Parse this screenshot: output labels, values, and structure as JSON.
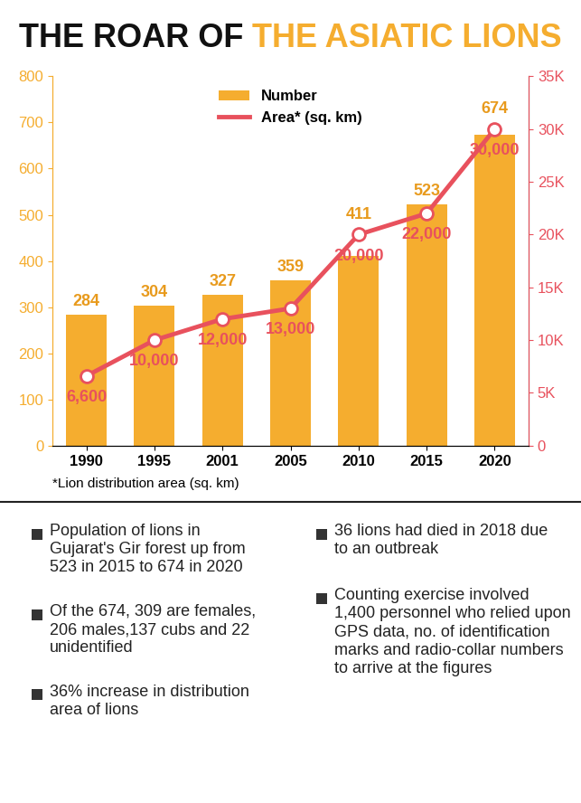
{
  "chart_data": {
    "type": "bar",
    "title": [
      "THE ROAR OF",
      "THE ASIATIC LIONS"
    ],
    "categories": [
      "1990",
      "1995",
      "2001",
      "2005",
      "2010",
      "2015",
      "2020"
    ],
    "series": [
      {
        "name": "Number",
        "type": "bar",
        "color": "#f5ad2f",
        "data_labels": true,
        "values": [
          284,
          304,
          327,
          359,
          411,
          523,
          674
        ]
      },
      {
        "name": "Area* (sq. km)",
        "type": "line",
        "color": "#e8515d",
        "axis": "y2",
        "marker": "circle",
        "line_style": "solid",
        "data_labels": true,
        "values": [
          6600,
          10000,
          12000,
          13000,
          20000,
          22000,
          30000
        ],
        "value_labels": [
          "6,600",
          "10,000",
          "12,000",
          "13,000",
          "20,000",
          "22,000",
          "30,000"
        ]
      }
    ],
    "ylim": [
      0,
      800
    ],
    "yticks": [
      0,
      100,
      200,
      300,
      400,
      500,
      600,
      700,
      800
    ],
    "y2lim": [
      0,
      35000
    ],
    "y2ticks": [
      0,
      {
        "value": 5000,
        "label": "5K"
      },
      {
        "value": 10000,
        "label": "10K"
      },
      {
        "value": 15000,
        "label": "15K"
      },
      {
        "value": 20000,
        "label": "20K"
      },
      {
        "value": 25000,
        "label": "25K"
      },
      {
        "value": 30000,
        "label": "30K"
      },
      {
        "value": 35000,
        "label": "35K"
      }
    ],
    "legend": "upper center",
    "grid": false,
    "footnote": "*Lion distribution area (sq. km)"
  },
  "notes": {
    "left": [
      "Population of lions in Gujarat's Gir forest up from 523 in 2015 to 674 in 2020",
      "Of the 674, 309 are females, 206 males,137 cubs and 22 unidentified",
      "36% increase in distribution area of lions"
    ],
    "right": [
      "36 lions had died in 2018 due to an outbreak",
      "Counting exercise involved 1,400 personnel who relied upon GPS data, no. of identification marks and radio-collar numbers to arrive at the figures"
    ]
  }
}
